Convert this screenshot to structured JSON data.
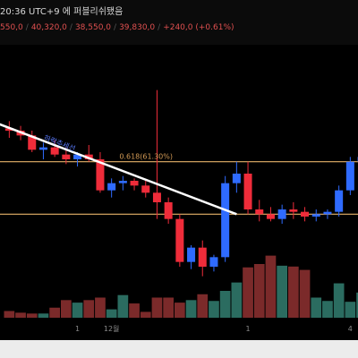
{
  "header": {
    "published_text": "20:36 UTC+9 에 퍼블리쉬됐음",
    "ohlc": {
      "open": "550,0",
      "high": "40,320,0",
      "low": "38,550,0",
      "close": "39,830,0",
      "change": "+240,0 (+0.61%)"
    }
  },
  "annotations": {
    "trendline_label": "하락추세선",
    "fib_label": "0.618(61.30%)"
  },
  "x_axis": {
    "ticks": [
      "1",
      "12월",
      "1",
      "4"
    ]
  },
  "colors": {
    "up": "#2f6bff",
    "down": "#ef2c3a",
    "vol_up": "#2b6c60",
    "vol_down": "#7b2a2a",
    "level_line": "#e6b36a",
    "trendline": "#ffffff",
    "trendline_label": "#5a7cff",
    "fib_label": "#d39a55"
  },
  "chart_data": {
    "type": "candlestick",
    "x_labels": [
      "",
      "",
      "",
      "",
      "",
      "",
      "",
      "",
      "",
      "12월",
      "",
      "",
      "",
      "",
      "",
      "",
      "",
      "",
      "",
      "",
      "",
      "1",
      "",
      "",
      "",
      "",
      "",
      "",
      "",
      "",
      "4",
      ""
    ],
    "candles": [
      {
        "o": 100,
        "h": 103,
        "l": 96,
        "c": 99
      },
      {
        "o": 99,
        "h": 101,
        "l": 95,
        "c": 97
      },
      {
        "o": 97,
        "h": 99,
        "l": 90,
        "c": 91
      },
      {
        "o": 91,
        "h": 94,
        "l": 87,
        "c": 92
      },
      {
        "o": 92,
        "h": 95,
        "l": 88,
        "c": 89
      },
      {
        "o": 89,
        "h": 92,
        "l": 85,
        "c": 87
      },
      {
        "o": 87,
        "h": 90,
        "l": 84,
        "c": 89
      },
      {
        "o": 89,
        "h": 93,
        "l": 86,
        "c": 87
      },
      {
        "o": 87,
        "h": 90,
        "l": 73,
        "c": 74
      },
      {
        "o": 74,
        "h": 79,
        "l": 71,
        "c": 77
      },
      {
        "o": 77,
        "h": 80,
        "l": 74,
        "c": 78
      },
      {
        "o": 78,
        "h": 79,
        "l": 74,
        "c": 76
      },
      {
        "o": 76,
        "h": 78,
        "l": 71,
        "c": 73
      },
      {
        "o": 73,
        "h": 116,
        "l": 62,
        "c": 69
      },
      {
        "o": 69,
        "h": 71,
        "l": 60,
        "c": 62
      },
      {
        "o": 62,
        "h": 64,
        "l": 42,
        "c": 44
      },
      {
        "o": 44,
        "h": 51,
        "l": 41,
        "c": 50
      },
      {
        "o": 50,
        "h": 53,
        "l": 38,
        "c": 42
      },
      {
        "o": 42,
        "h": 47,
        "l": 40,
        "c": 46
      },
      {
        "o": 46,
        "h": 80,
        "l": 44,
        "c": 77
      },
      {
        "o": 77,
        "h": 86,
        "l": 73,
        "c": 81
      },
      {
        "o": 81,
        "h": 86,
        "l": 64,
        "c": 66
      },
      {
        "o": 66,
        "h": 70,
        "l": 61,
        "c": 64
      },
      {
        "o": 64,
        "h": 67,
        "l": 61,
        "c": 62
      },
      {
        "o": 62,
        "h": 68,
        "l": 60,
        "c": 66
      },
      {
        "o": 66,
        "h": 69,
        "l": 62,
        "c": 65
      },
      {
        "o": 65,
        "h": 67,
        "l": 61,
        "c": 63
      },
      {
        "o": 63,
        "h": 66,
        "l": 61,
        "c": 64
      },
      {
        "o": 64,
        "h": 66,
        "l": 62,
        "c": 65
      },
      {
        "o": 65,
        "h": 76,
        "l": 63,
        "c": 74
      },
      {
        "o": 74,
        "h": 88,
        "l": 72,
        "c": 86
      },
      {
        "o": 86,
        "h": 91,
        "l": 83,
        "c": 88
      }
    ],
    "volumes": [
      8,
      6,
      5,
      5,
      12,
      21,
      18,
      21,
      24,
      10,
      27,
      17,
      7,
      24,
      24,
      18,
      21,
      28,
      20,
      32,
      42,
      60,
      64,
      74,
      62,
      61,
      57,
      24,
      20,
      41,
      19,
      30
    ],
    "levels": [
      86,
      64
    ],
    "trendline": {
      "from": [
        0,
        103
      ],
      "to": [
        20,
        64
      ]
    },
    "y_range": [
      30,
      120
    ],
    "volume_max": 64,
    "grid": false,
    "legend": "none"
  }
}
